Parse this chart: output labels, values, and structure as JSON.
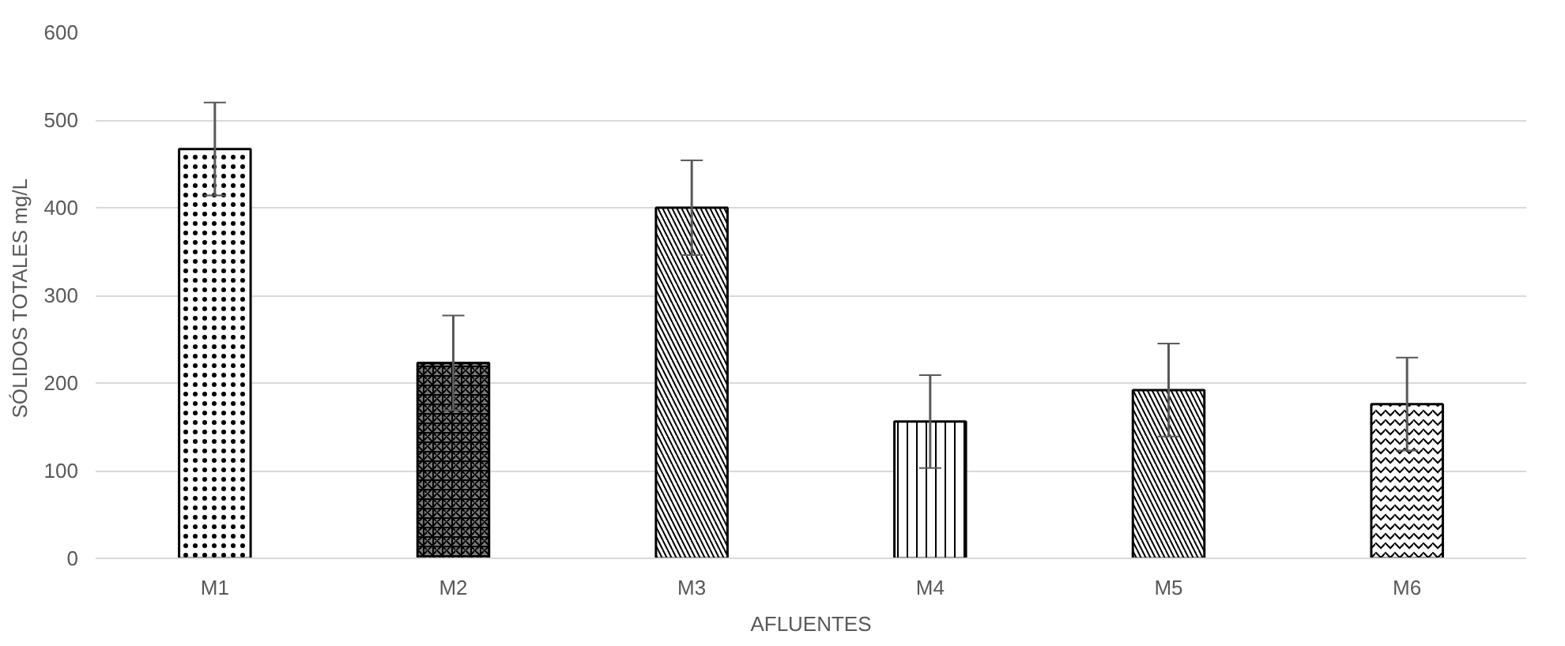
{
  "chart_data": {
    "type": "bar",
    "xlabel": "AFLUENTES",
    "ylabel": "SÓLIDOS TOTALES  mg/L",
    "categories": [
      "M1",
      "M2",
      "M3",
      "M4",
      "M5",
      "M6"
    ],
    "values": [
      467,
      223,
      400,
      156,
      192,
      176
    ],
    "errors": [
      53,
      54,
      54,
      53,
      53,
      53
    ],
    "colors": [
      "#ffffff",
      "#7a7a7a",
      "#ffffff",
      "#ffffff",
      "#ffffff",
      "#ffffff"
    ],
    "ylim": [
      0,
      600
    ],
    "yticks": [
      0,
      100,
      200,
      300,
      400,
      500,
      600
    ],
    "grid": "y"
  }
}
